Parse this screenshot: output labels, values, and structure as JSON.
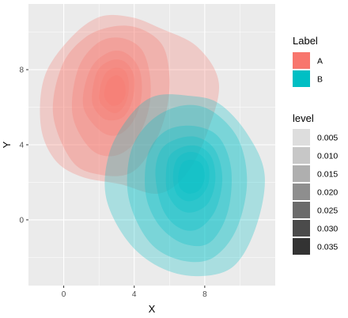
{
  "chart_data": {
    "type": "density2d_filled",
    "xlabel": "X",
    "ylabel": "Y",
    "xlim": [
      -2,
      12
    ],
    "ylim": [
      -3.5,
      11.5
    ],
    "x_ticks": [
      0,
      4,
      8
    ],
    "y_ticks": [
      0,
      4,
      8
    ],
    "grid": true,
    "legend_position": "right",
    "groups": [
      {
        "name": "A",
        "color": "#F8766D",
        "center": [
          2.8,
          6.8
        ],
        "levels": [
          {
            "level": 0.005,
            "alpha": 0.12,
            "points": [
              [
                -1.3,
                5.0
              ],
              [
                -1.1,
                7.6
              ],
              [
                0.3,
                9.6
              ],
              [
                2.0,
                10.8
              ],
              [
                3.8,
                10.8
              ],
              [
                5.5,
                10.2
              ],
              [
                7.6,
                9.2
              ],
              [
                8.8,
                7.3
              ],
              [
                8.2,
                4.8
              ],
              [
                7.0,
                2.5
              ],
              [
                5.4,
                1.4
              ],
              [
                3.2,
                1.9
              ],
              [
                1.0,
                2.3
              ],
              [
                -0.5,
                3.2
              ]
            ]
          },
          {
            "level": 0.01,
            "alpha": 0.22,
            "points": [
              [
                -0.6,
                5.6
              ],
              [
                -0.1,
                8.2
              ],
              [
                1.2,
                9.7
              ],
              [
                2.8,
                10.3
              ],
              [
                4.3,
                10.2
              ],
              [
                5.6,
                9.3
              ],
              [
                6.0,
                7.6
              ],
              [
                5.8,
                5.7
              ],
              [
                5.0,
                3.8
              ],
              [
                3.8,
                2.5
              ],
              [
                2.1,
                2.4
              ],
              [
                0.5,
                3.1
              ]
            ]
          },
          {
            "level": 0.015,
            "alpha": 0.35,
            "points": [
              [
                0.5,
                5.6
              ],
              [
                0.8,
                8.0
              ],
              [
                1.9,
                9.4
              ],
              [
                3.2,
                9.7
              ],
              [
                4.4,
                9.1
              ],
              [
                4.9,
                7.6
              ],
              [
                4.8,
                5.8
              ],
              [
                4.0,
                4.1
              ],
              [
                2.8,
                3.4
              ],
              [
                1.5,
                3.8
              ]
            ]
          },
          {
            "level": 0.02,
            "alpha": 0.5,
            "points": [
              [
                1.1,
                6.1
              ],
              [
                1.5,
                8.0
              ],
              [
                2.5,
                8.9
              ],
              [
                3.5,
                8.9
              ],
              [
                4.3,
                8.0
              ],
              [
                4.4,
                6.5
              ],
              [
                3.9,
                5.2
              ],
              [
                3.0,
                4.5
              ],
              [
                2.0,
                4.8
              ]
            ]
          },
          {
            "level": 0.025,
            "alpha": 0.68,
            "points": [
              [
                1.6,
                6.4
              ],
              [
                1.9,
                7.9
              ],
              [
                2.7,
                8.5
              ],
              [
                3.5,
                8.4
              ],
              [
                4.0,
                7.6
              ],
              [
                3.9,
                6.4
              ],
              [
                3.4,
                5.5
              ],
              [
                2.6,
                5.3
              ],
              [
                2.0,
                5.6
              ]
            ]
          },
          {
            "level": 0.03,
            "alpha": 0.85,
            "points": [
              [
                2.0,
                6.5
              ],
              [
                2.3,
                7.7
              ],
              [
                2.9,
                8.1
              ],
              [
                3.5,
                7.9
              ],
              [
                3.7,
                7.1
              ],
              [
                3.5,
                6.2
              ],
              [
                3.0,
                5.7
              ],
              [
                2.4,
                5.9
              ]
            ]
          },
          {
            "level": 0.035,
            "alpha": 1.0,
            "points": [
              [
                2.3,
                6.6
              ],
              [
                2.5,
                7.4
              ],
              [
                3.0,
                7.7
              ],
              [
                3.4,
                7.4
              ],
              [
                3.5,
                6.7
              ],
              [
                3.2,
                6.2
              ],
              [
                2.7,
                6.1
              ]
            ]
          }
        ]
      },
      {
        "name": "B",
        "color": "#00BFC4",
        "center": [
          7.2,
          2.2
        ],
        "levels": [
          {
            "level": 0.005,
            "alpha": 0.12,
            "points": [
              [
                2.4,
                1.2
              ],
              [
                2.6,
                3.6
              ],
              [
                3.8,
                5.6
              ],
              [
                5.2,
                6.6
              ],
              [
                7.2,
                6.6
              ],
              [
                8.8,
                6.2
              ],
              [
                10.4,
                4.6
              ],
              [
                11.4,
                2.4
              ],
              [
                10.9,
                -0.4
              ],
              [
                9.6,
                -2.5
              ],
              [
                7.5,
                -3.0
              ],
              [
                5.4,
                -2.5
              ],
              [
                3.6,
                -1.1
              ]
            ]
          },
          {
            "level": 0.01,
            "alpha": 0.22,
            "points": [
              [
                3.6,
                1.8
              ],
              [
                3.9,
                3.9
              ],
              [
                5.1,
                5.4
              ],
              [
                6.8,
                6.1
              ],
              [
                8.4,
                5.8
              ],
              [
                9.9,
                4.3
              ],
              [
                10.4,
                2.0
              ],
              [
                9.8,
                -0.5
              ],
              [
                8.5,
                -2.0
              ],
              [
                6.9,
                -2.2
              ],
              [
                5.2,
                -1.5
              ],
              [
                4.1,
                0.0
              ]
            ]
          },
          {
            "level": 0.015,
            "alpha": 0.35,
            "points": [
              [
                4.6,
                2.3
              ],
              [
                4.9,
                3.8
              ],
              [
                5.9,
                4.8
              ],
              [
                7.4,
                5.0
              ],
              [
                8.8,
                4.4
              ],
              [
                9.5,
                2.7
              ],
              [
                9.3,
                0.4
              ],
              [
                8.3,
                -1.2
              ],
              [
                6.9,
                -1.3
              ],
              [
                5.6,
                -0.5
              ],
              [
                4.8,
                0.8
              ]
            ]
          },
          {
            "level": 0.02,
            "alpha": 0.5,
            "points": [
              [
                5.2,
                2.4
              ],
              [
                5.5,
                3.7
              ],
              [
                6.4,
                4.3
              ],
              [
                7.6,
                4.4
              ],
              [
                8.6,
                3.7
              ],
              [
                9.0,
                2.2
              ],
              [
                8.6,
                0.5
              ],
              [
                7.6,
                -0.5
              ],
              [
                6.5,
                -0.4
              ],
              [
                5.6,
                0.6
              ]
            ]
          },
          {
            "level": 0.025,
            "alpha": 0.68,
            "points": [
              [
                5.8,
                2.4
              ],
              [
                6.0,
                3.4
              ],
              [
                6.8,
                3.9
              ],
              [
                7.7,
                3.9
              ],
              [
                8.4,
                3.3
              ],
              [
                8.6,
                2.1
              ],
              [
                8.2,
                0.9
              ],
              [
                7.3,
                0.4
              ],
              [
                6.5,
                0.6
              ],
              [
                5.9,
                1.4
              ]
            ]
          },
          {
            "level": 0.03,
            "alpha": 0.85,
            "points": [
              [
                6.2,
                2.3
              ],
              [
                6.4,
                3.2
              ],
              [
                7.0,
                3.6
              ],
              [
                7.7,
                3.5
              ],
              [
                8.2,
                2.9
              ],
              [
                8.2,
                1.9
              ],
              [
                7.7,
                1.2
              ],
              [
                7.0,
                1.0
              ],
              [
                6.4,
                1.4
              ]
            ]
          },
          {
            "level": 0.035,
            "alpha": 1.0,
            "points": [
              [
                6.5,
                2.3
              ],
              [
                6.7,
                3.0
              ],
              [
                7.2,
                3.2
              ],
              [
                7.8,
                3.0
              ],
              [
                8.0,
                2.3
              ],
              [
                7.7,
                1.6
              ],
              [
                7.1,
                1.4
              ],
              [
                6.6,
                1.7
              ]
            ]
          }
        ]
      }
    ],
    "legend": {
      "label_title": "Label",
      "label_items": [
        {
          "name": "A",
          "color": "#F8766D"
        },
        {
          "name": "B",
          "color": "#00BFC4"
        }
      ],
      "level_title": "level",
      "level_items": [
        {
          "name": "0.005",
          "color": "#DDDDDD"
        },
        {
          "name": "0.010",
          "color": "#C7C7C7"
        },
        {
          "name": "0.015",
          "color": "#AFAFAF"
        },
        {
          "name": "0.020",
          "color": "#8E8E8E"
        },
        {
          "name": "0.025",
          "color": "#6B6B6B"
        },
        {
          "name": "0.030",
          "color": "#4B4B4B"
        },
        {
          "name": "0.035",
          "color": "#333333"
        }
      ]
    }
  }
}
